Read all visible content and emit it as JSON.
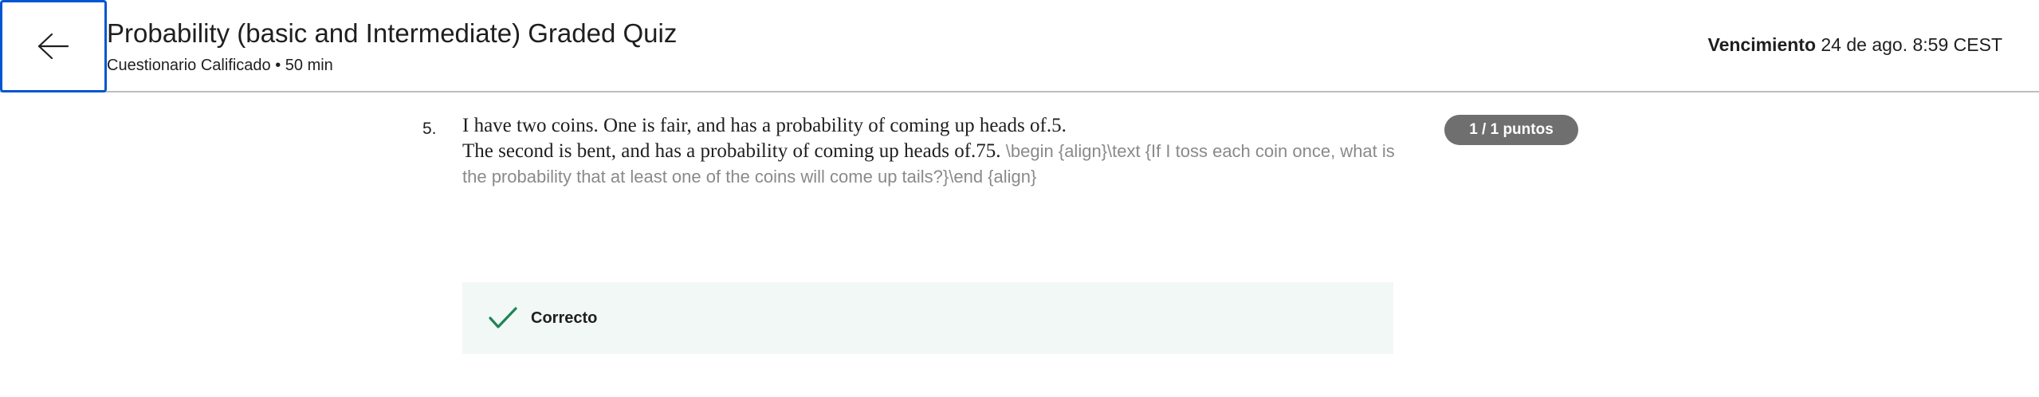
{
  "header": {
    "back_icon": "arrow-left-icon",
    "title": "Probability (basic and Intermediate) Graded Quiz",
    "subtitle": "Cuestionario Calificado • 50 min",
    "due_label": "Vencimiento",
    "due_value": "24 de ago. 8:59 CEST"
  },
  "question": {
    "number": "5.",
    "line1": "I have two coins. One is fair, and has a probability of coming up heads of.5.",
    "line2": "The second is bent, and has a probability of coming up heads of.75.",
    "raw_text": "\\begin {align}\\text {If I toss each coin once, what is the probability that at least one of the coins will come up tails?}\\end {align}",
    "points": "1 / 1 puntos"
  },
  "feedback": {
    "icon": "checkmark-icon",
    "label": "Correcto",
    "color": "#1f8354"
  },
  "colors": {
    "accent": "#0056d2",
    "badge": "#6f6f6f",
    "feedback_bg": "#f2f8f5"
  }
}
